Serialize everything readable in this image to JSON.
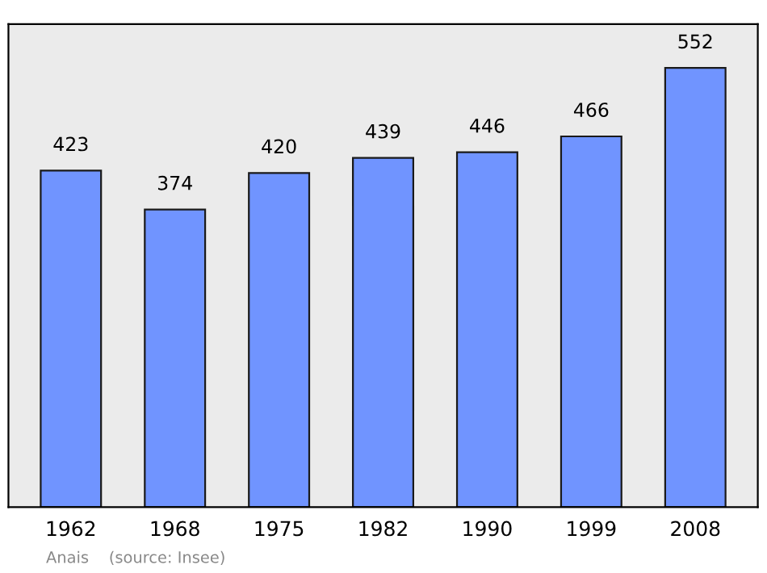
{
  "chart_data": {
    "type": "bar",
    "categories": [
      "1962",
      "1968",
      "1975",
      "1982",
      "1990",
      "1999",
      "2008"
    ],
    "values": [
      423,
      374,
      420,
      439,
      446,
      466,
      552
    ],
    "color": "#7094ff",
    "data_labels": true,
    "grid": false,
    "annotations": [
      "Anais    (source: Insee)"
    ]
  }
}
